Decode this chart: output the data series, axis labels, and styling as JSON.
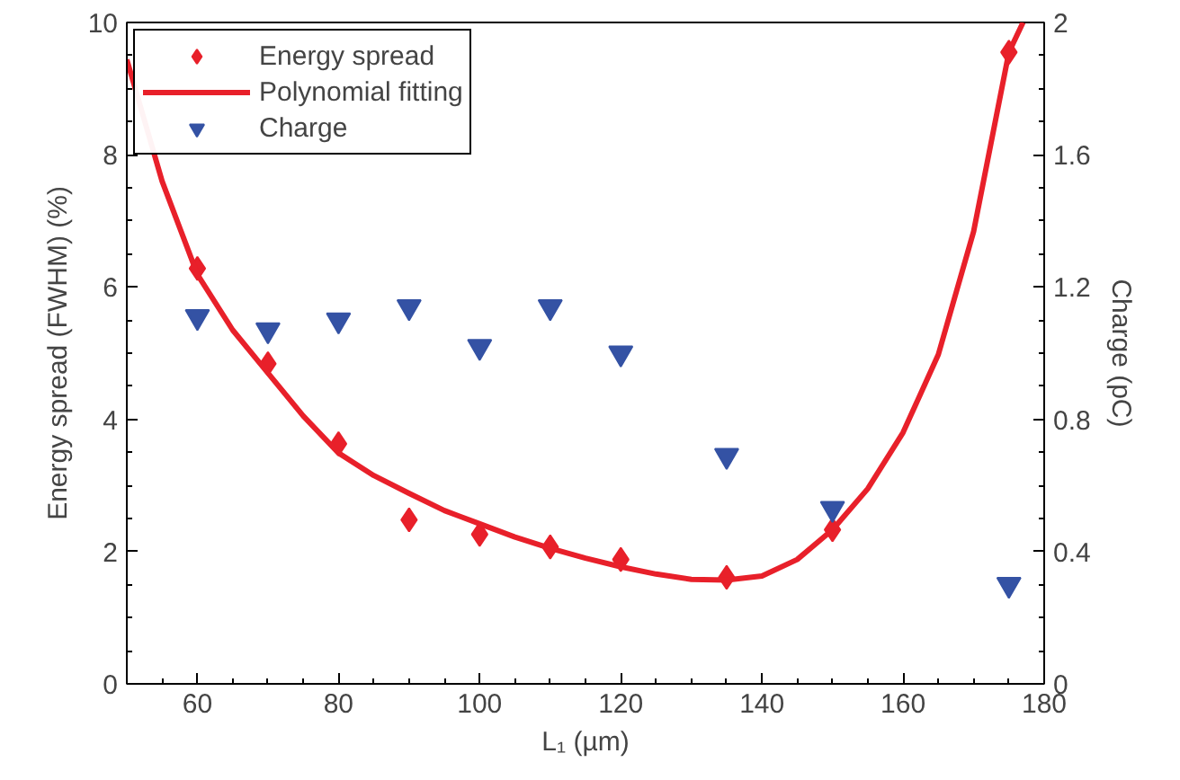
{
  "chart_data": {
    "type": "scatter",
    "xlabel": "L₁ (µm)",
    "ylabel": "Energy spread (FWHM) (%)",
    "y2label": "Charge (pC)",
    "xlim": [
      50,
      180
    ],
    "xticks": [
      60,
      80,
      100,
      120,
      140,
      160,
      180
    ],
    "ylim": [
      0,
      10
    ],
    "yticks": [
      0,
      2,
      4,
      6,
      8,
      10
    ],
    "y2lim": [
      0,
      2
    ],
    "y2ticks": [
      0,
      0.4,
      0.8,
      1.2,
      1.6,
      2
    ],
    "legend": "top left",
    "grid": false,
    "series": [
      {
        "name": "Energy spread",
        "marker": "diamond",
        "color": "#e8202a",
        "x": [
          60,
          70,
          80,
          90,
          100,
          110,
          120,
          135,
          150,
          175
        ],
        "values": [
          6.28,
          4.84,
          3.63,
          2.48,
          2.26,
          2.07,
          1.88,
          1.61,
          2.33,
          9.55
        ]
      },
      {
        "name": "Polynomial fitting",
        "type": "line",
        "line_style": "solid",
        "color": "#e8202a",
        "x": [
          50,
          55,
          60,
          65,
          70,
          75,
          80,
          85,
          90,
          95,
          100,
          105,
          110,
          115,
          120,
          125,
          130,
          135,
          140,
          145,
          150,
          155,
          160,
          165,
          170,
          175,
          177
        ],
        "values": [
          9.44,
          7.6,
          6.19,
          5.35,
          4.7,
          4.05,
          3.49,
          3.15,
          2.88,
          2.62,
          2.42,
          2.22,
          2.05,
          1.9,
          1.77,
          1.66,
          1.58,
          1.57,
          1.63,
          1.88,
          2.33,
          2.95,
          3.8,
          4.98,
          6.84,
          9.55,
          10
        ]
      },
      {
        "name": "Charge",
        "marker": "triangle",
        "axis": "y2",
        "color": "#3452a4",
        "x": [
          60,
          70,
          80,
          90,
          100,
          110,
          120,
          135,
          150,
          175
        ],
        "values": [
          1.11,
          1.07,
          1.1,
          1.14,
          1.02,
          1.14,
          1.0,
          0.69,
          0.53,
          0.3
        ]
      }
    ]
  }
}
